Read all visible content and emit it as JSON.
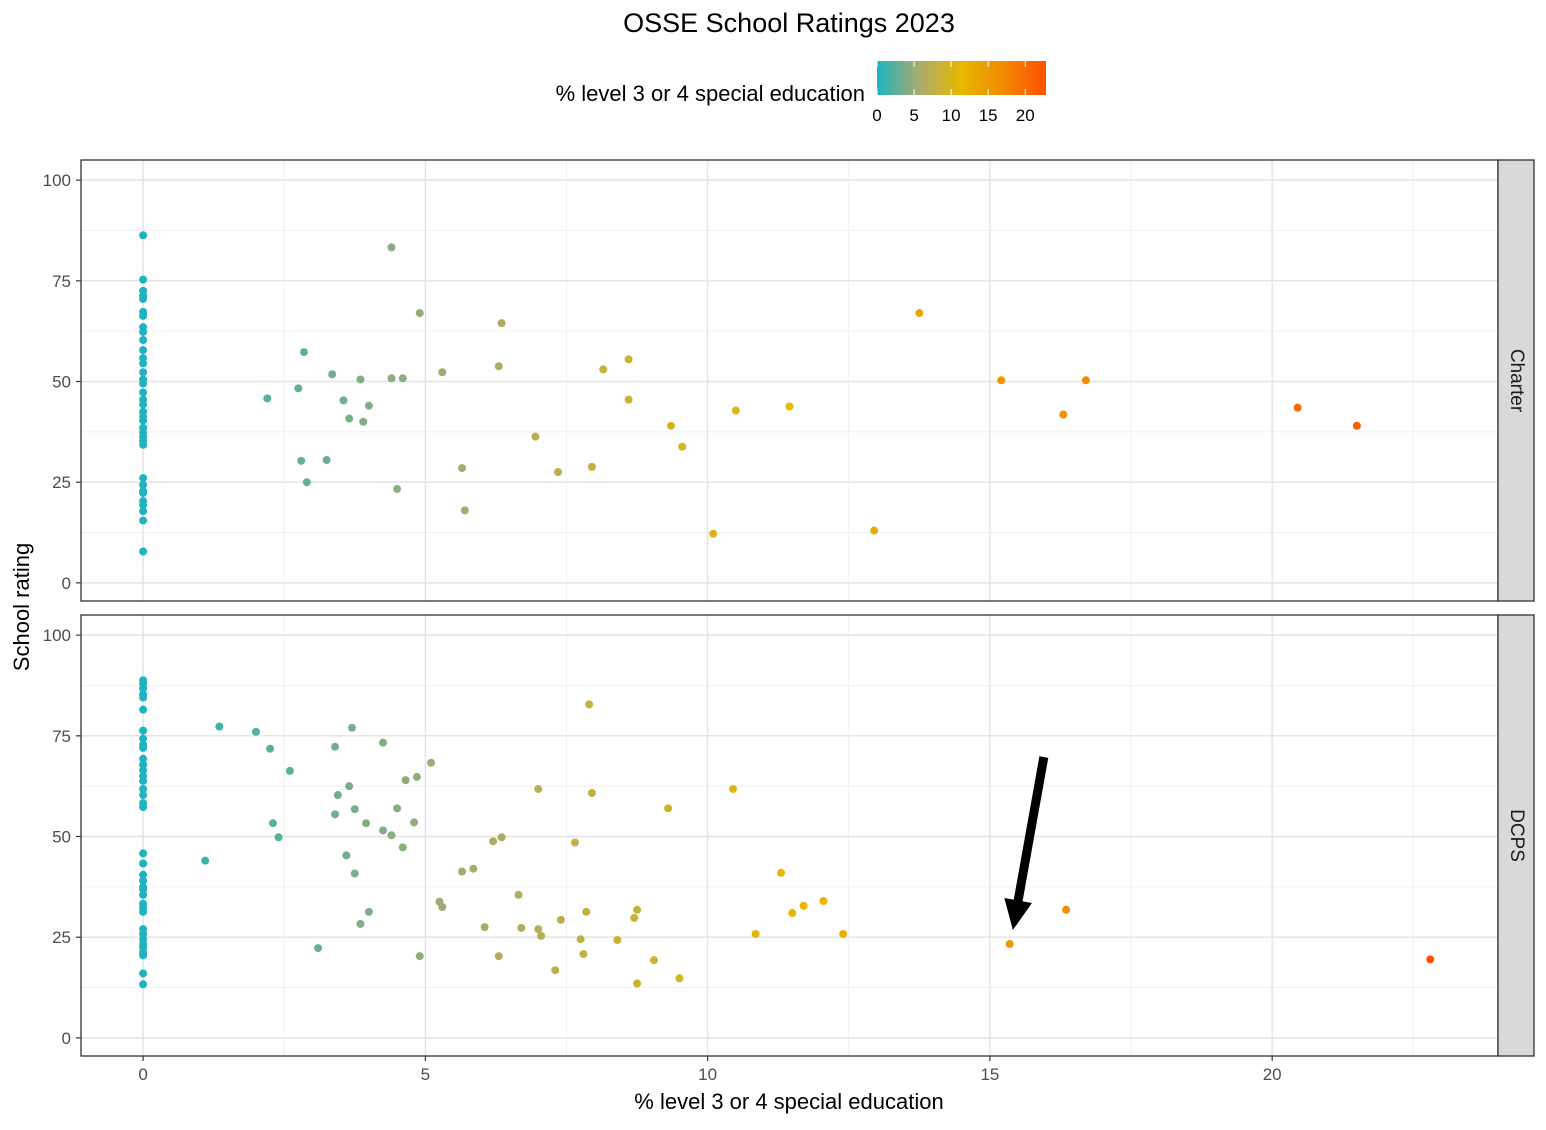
{
  "chart_data": {
    "type": "scatter",
    "title": "OSSE School Ratings 2023",
    "xlabel": "% level 3 or 4 special education",
    "ylabel": "School rating",
    "xlim": [
      -1.1,
      24
    ],
    "ylim": [
      -4.5,
      105
    ],
    "x_ticks": [
      0,
      5,
      10,
      15,
      20
    ],
    "y_ticks": [
      0,
      25,
      50,
      75,
      100
    ],
    "grid": true,
    "legend": {
      "title": "% level 3 or 4 special education",
      "type": "colorbar",
      "placement": "top",
      "ticks": [
        0,
        5,
        10,
        15,
        20
      ],
      "range": [
        0,
        22.8
      ],
      "colors": [
        "#1fb3c0",
        "#a8ab6e",
        "#e8b800",
        "#f08a00",
        "#ff5000"
      ]
    },
    "annotation": {
      "type": "arrow",
      "target_x": 15.3,
      "target_y": 23.3
    },
    "panels": [
      {
        "label": "Charter",
        "points": [
          [
            0,
            86.3
          ],
          [
            0,
            75.3
          ],
          [
            0,
            72.5
          ],
          [
            0,
            71.3
          ],
          [
            0,
            70.5
          ],
          [
            0,
            67.3
          ],
          [
            0,
            66.3
          ],
          [
            0,
            63.5
          ],
          [
            0,
            62.3
          ],
          [
            0,
            60.3
          ],
          [
            0,
            57.8
          ],
          [
            0,
            55.8
          ],
          [
            0,
            54.5
          ],
          [
            0,
            52.3
          ],
          [
            0,
            50.5
          ],
          [
            0,
            49.5
          ],
          [
            0,
            47.3
          ],
          [
            0,
            45.5
          ],
          [
            0,
            44.3
          ],
          [
            0,
            42.5
          ],
          [
            0,
            41.3
          ],
          [
            0,
            40.3
          ],
          [
            0,
            38.5
          ],
          [
            0,
            37.3
          ],
          [
            0,
            36.3
          ],
          [
            0,
            35.3
          ],
          [
            0,
            34.3
          ],
          [
            0,
            26.0
          ],
          [
            0,
            24.3
          ],
          [
            0,
            22.8
          ],
          [
            0,
            22.3
          ],
          [
            0,
            20.3
          ],
          [
            0,
            19.3
          ],
          [
            0,
            17.8
          ],
          [
            0,
            15.5
          ],
          [
            0,
            7.8
          ],
          [
            2.2,
            45.8
          ],
          [
            2.75,
            48.3
          ],
          [
            2.85,
            57.3
          ],
          [
            2.8,
            30.3
          ],
          [
            2.9,
            25.0
          ],
          [
            3.25,
            30.5
          ],
          [
            3.35,
            51.8
          ],
          [
            3.55,
            45.3
          ],
          [
            3.65,
            40.8
          ],
          [
            3.85,
            50.5
          ],
          [
            3.9,
            40.0
          ],
          [
            4.0,
            44.0
          ],
          [
            4.4,
            83.3
          ],
          [
            4.4,
            50.8
          ],
          [
            4.5,
            23.3
          ],
          [
            4.6,
            50.8
          ],
          [
            4.9,
            67.0
          ],
          [
            5.3,
            52.3
          ],
          [
            5.65,
            28.5
          ],
          [
            5.7,
            18.0
          ],
          [
            6.3,
            53.8
          ],
          [
            6.35,
            64.5
          ],
          [
            6.95,
            36.3
          ],
          [
            7.35,
            27.5
          ],
          [
            7.95,
            28.8
          ],
          [
            8.15,
            53.0
          ],
          [
            8.6,
            55.5
          ],
          [
            8.6,
            45.5
          ],
          [
            9.35,
            39.0
          ],
          [
            9.55,
            33.8
          ],
          [
            10.1,
            12.2
          ],
          [
            10.5,
            42.8
          ],
          [
            11.45,
            43.8
          ],
          [
            12.95,
            13.0
          ],
          [
            13.75,
            67.0
          ],
          [
            15.2,
            50.3
          ],
          [
            16.3,
            41.8
          ],
          [
            16.7,
            50.3
          ],
          [
            20.45,
            43.5
          ],
          [
            21.5,
            39.0
          ]
        ]
      },
      {
        "label": "DCPS",
        "points": [
          [
            0,
            88.8
          ],
          [
            0,
            88.0
          ],
          [
            0,
            86.8
          ],
          [
            0,
            85.3
          ],
          [
            0,
            84.5
          ],
          [
            0,
            81.5
          ],
          [
            0,
            76.3
          ],
          [
            0,
            74.3
          ],
          [
            0,
            72.8
          ],
          [
            0,
            72.0
          ],
          [
            0,
            69.3
          ],
          [
            0,
            67.8
          ],
          [
            0,
            66.5
          ],
          [
            0,
            65.0
          ],
          [
            0,
            63.8
          ],
          [
            0,
            61.8
          ],
          [
            0,
            60.3
          ],
          [
            0,
            58.3
          ],
          [
            0,
            57.3
          ],
          [
            0,
            45.8
          ],
          [
            0,
            43.3
          ],
          [
            0,
            40.5
          ],
          [
            0,
            39.0
          ],
          [
            0,
            37.5
          ],
          [
            0,
            36.8
          ],
          [
            0,
            35.5
          ],
          [
            0,
            33.3
          ],
          [
            0,
            32.3
          ],
          [
            0,
            31.3
          ],
          [
            0,
            27.0
          ],
          [
            0,
            25.8
          ],
          [
            0,
            24.5
          ],
          [
            0,
            23.3
          ],
          [
            0,
            22.5
          ],
          [
            0,
            21.3
          ],
          [
            0,
            20.5
          ],
          [
            0,
            16.0
          ],
          [
            0,
            13.3
          ],
          [
            1.1,
            44.0
          ],
          [
            1.35,
            77.3
          ],
          [
            2.0,
            76.0
          ],
          [
            2.25,
            71.8
          ],
          [
            2.3,
            53.3
          ],
          [
            2.4,
            49.8
          ],
          [
            2.6,
            66.3
          ],
          [
            3.1,
            22.3
          ],
          [
            3.4,
            72.3
          ],
          [
            3.4,
            55.5
          ],
          [
            3.45,
            60.3
          ],
          [
            3.6,
            45.3
          ],
          [
            3.65,
            62.5
          ],
          [
            3.7,
            77.0
          ],
          [
            3.75,
            40.8
          ],
          [
            3.75,
            56.8
          ],
          [
            3.85,
            28.3
          ],
          [
            3.95,
            53.3
          ],
          [
            4.0,
            31.3
          ],
          [
            4.25,
            73.3
          ],
          [
            4.25,
            51.5
          ],
          [
            4.4,
            50.3
          ],
          [
            4.5,
            57.0
          ],
          [
            4.6,
            47.3
          ],
          [
            4.65,
            64.0
          ],
          [
            4.8,
            53.5
          ],
          [
            4.85,
            64.8
          ],
          [
            4.9,
            20.3
          ],
          [
            5.1,
            68.3
          ],
          [
            5.25,
            33.8
          ],
          [
            5.3,
            32.5
          ],
          [
            5.65,
            41.3
          ],
          [
            5.85,
            42.0
          ],
          [
            6.05,
            27.5
          ],
          [
            6.2,
            48.8
          ],
          [
            6.3,
            20.3
          ],
          [
            6.35,
            49.8
          ],
          [
            6.65,
            35.5
          ],
          [
            6.7,
            27.3
          ],
          [
            7.0,
            27.0
          ],
          [
            7.0,
            61.8
          ],
          [
            7.05,
            25.3
          ],
          [
            7.3,
            16.8
          ],
          [
            7.4,
            29.3
          ],
          [
            7.65,
            48.5
          ],
          [
            7.75,
            24.5
          ],
          [
            7.8,
            20.8
          ],
          [
            7.85,
            31.3
          ],
          [
            7.9,
            82.8
          ],
          [
            7.95,
            60.8
          ],
          [
            8.4,
            24.3
          ],
          [
            8.7,
            29.8
          ],
          [
            8.75,
            13.5
          ],
          [
            8.75,
            31.8
          ],
          [
            9.05,
            19.3
          ],
          [
            9.3,
            57.0
          ],
          [
            9.5,
            14.8
          ],
          [
            10.45,
            61.8
          ],
          [
            10.85,
            25.8
          ],
          [
            11.3,
            41.0
          ],
          [
            11.5,
            31.0
          ],
          [
            11.7,
            32.8
          ],
          [
            12.05,
            34.0
          ],
          [
            12.4,
            25.8
          ],
          [
            15.35,
            23.3
          ],
          [
            16.35,
            31.8
          ],
          [
            22.8,
            19.5
          ]
        ]
      }
    ]
  }
}
